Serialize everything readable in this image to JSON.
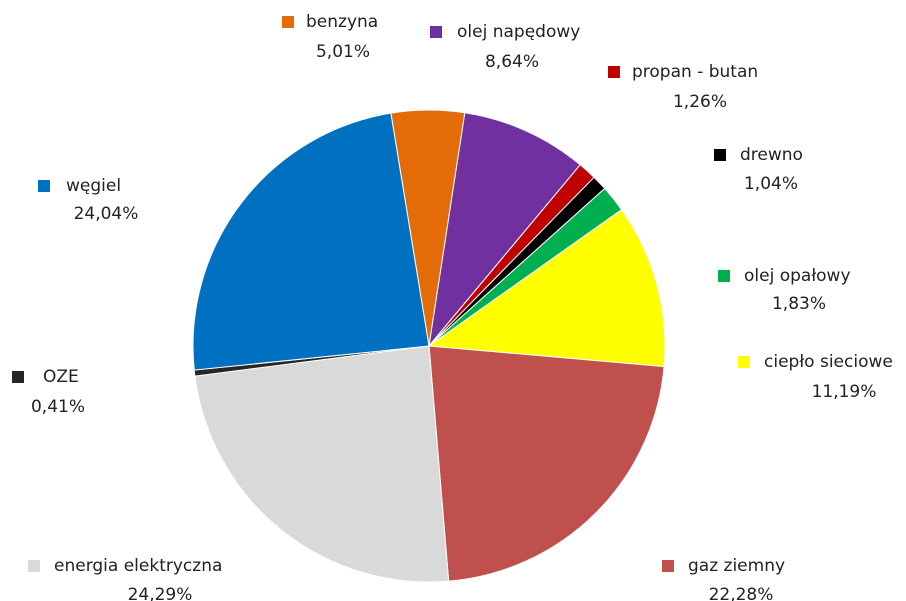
{
  "chart_data": {
    "type": "pie",
    "categories": [
      "benzyna",
      "olej napędowy",
      "propan - butan",
      "drewno",
      "olej opałowy",
      "ciepło sieciowe",
      "gaz ziemny",
      "energia elektryczna",
      "OZE",
      "węgiel"
    ],
    "values": [
      5.01,
      8.64,
      1.26,
      1.04,
      1.83,
      11.19,
      22.28,
      24.29,
      0.41,
      24.04
    ],
    "value_labels": [
      "5,01%",
      "8,64%",
      "1,26%",
      "1,04%",
      "1,83%",
      "11,19%",
      "22,28%",
      "24,29%",
      "0,41%",
      "24,04%"
    ],
    "colors": [
      "#e36c09",
      "#7030a0",
      "#c00000",
      "#000000",
      "#00b050",
      "#ffff00",
      "#c0504d",
      "#d9d9d9",
      "#262626",
      "#0070c0"
    ]
  }
}
